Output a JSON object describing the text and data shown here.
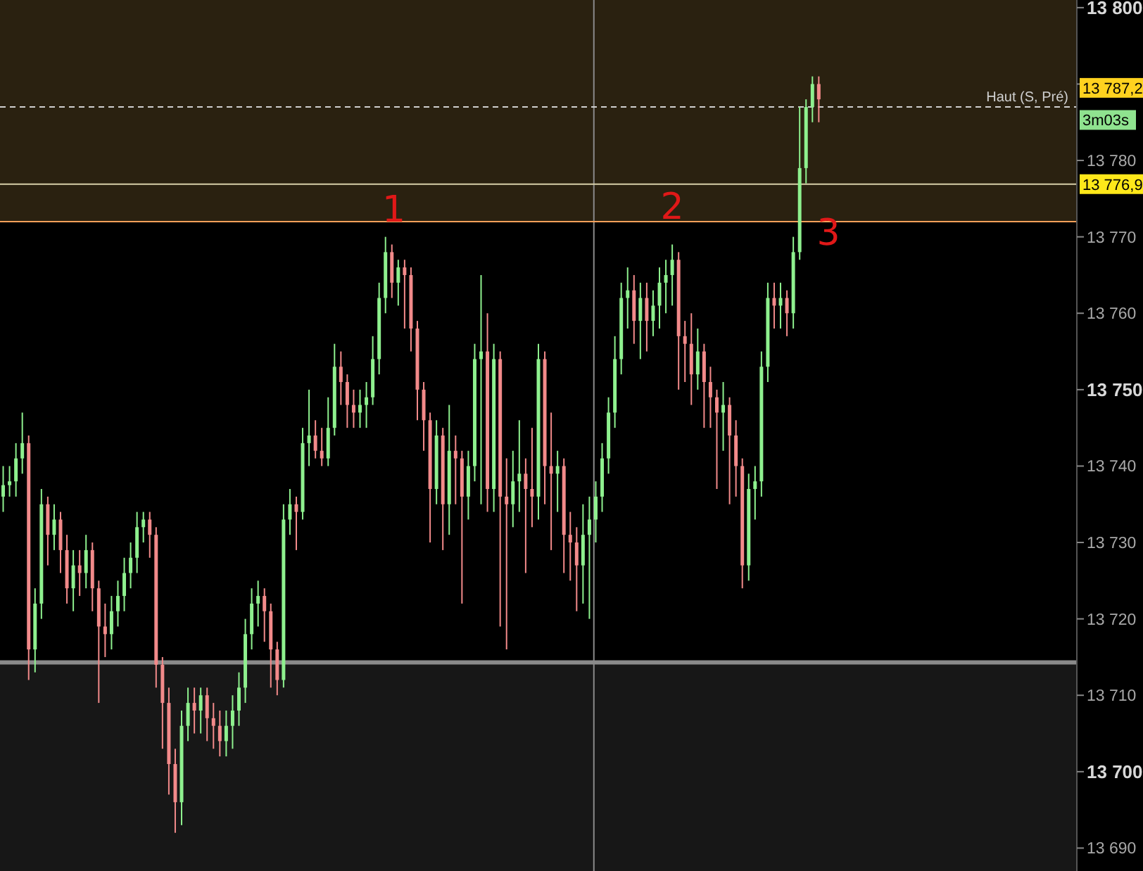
{
  "chart_data": {
    "type": "candlestick",
    "categories": [
      null,
      null,
      null,
      null,
      null,
      null,
      null,
      null,
      null,
      null,
      null,
      null,
      null,
      null,
      null,
      null,
      null,
      null,
      null,
      null,
      null,
      null,
      null,
      null,
      null,
      null,
      null,
      null,
      null,
      null,
      null,
      null,
      null,
      null,
      null,
      null,
      null,
      null,
      null,
      null,
      null,
      null,
      null,
      null,
      null,
      null,
      null,
      null,
      null,
      null,
      null,
      null,
      null,
      null,
      null,
      null,
      null,
      null,
      null,
      null,
      null,
      null,
      null,
      null,
      null,
      null,
      null,
      null,
      null,
      null,
      null,
      null,
      null,
      null,
      null,
      null,
      null,
      null,
      null,
      null,
      null,
      null,
      null,
      null,
      null,
      null,
      null,
      null,
      null,
      null,
      null,
      null,
      null,
      null,
      null,
      null,
      null,
      null,
      null,
      null,
      null,
      null,
      null,
      null,
      null,
      null,
      null,
      null,
      null,
      null,
      null,
      null,
      null,
      null,
      null,
      null,
      null,
      null,
      null,
      null,
      null,
      null,
      null,
      null,
      null,
      null,
      null,
      null,
      null,
      null,
      null,
      null,
      null,
      null,
      null,
      null,
      null,
      null,
      null,
      null,
      null,
      null,
      null,
      null,
      null,
      null,
      null,
      null,
      null,
      null,
      null,
      null,
      null,
      null,
      null,
      null,
      null,
      null,
      null,
      null,
      null,
      null,
      null,
      null,
      null,
      null,
      null,
      null,
      null
    ],
    "ohlc": [
      [
        13736,
        13740,
        13734,
        13737.5
      ],
      [
        13737.5,
        13740,
        13736,
        13738
      ],
      [
        13738,
        13743,
        13736,
        13741
      ],
      [
        13741,
        13747,
        13739,
        13743
      ],
      [
        13743,
        13744,
        13712,
        13716
      ],
      [
        13716,
        13724,
        13713,
        13722
      ],
      [
        13722,
        13737,
        13720,
        13735
      ],
      [
        13735,
        13736,
        13727,
        13731
      ],
      [
        13731,
        13735,
        13729,
        13733
      ],
      [
        13733,
        13734,
        13726,
        13729
      ],
      [
        13729,
        13731,
        13722,
        13724
      ],
      [
        13724,
        13729,
        13721,
        13727
      ],
      [
        13727,
        13729,
        13723,
        13726
      ],
      [
        13726,
        13731,
        13724,
        13729
      ],
      [
        13729,
        13730,
        13721,
        13724
      ],
      [
        13724,
        13725,
        13709,
        13719
      ],
      [
        13719,
        13722,
        13715,
        13718
      ],
      [
        13718,
        13723,
        13716,
        13721
      ],
      [
        13721,
        13725,
        13719,
        13723
      ],
      [
        13723,
        13728,
        13721,
        13726
      ],
      [
        13726,
        13730,
        13724,
        13728
      ],
      [
        13728,
        13734,
        13726,
        13732
      ],
      [
        13732,
        13734,
        13730,
        13733
      ],
      [
        13733,
        13734,
        13728,
        13731
      ],
      [
        13731,
        13732,
        13711,
        13714
      ],
      [
        13714,
        13715,
        13703,
        13709
      ],
      [
        13709,
        13711,
        13697,
        13701
      ],
      [
        13701,
        13703,
        13692,
        13696
      ],
      [
        13696,
        13708,
        13693,
        13706
      ],
      [
        13706,
        13711,
        13704,
        13709
      ],
      [
        13709,
        13711,
        13705,
        13708
      ],
      [
        13708,
        13711,
        13705,
        13710
      ],
      [
        13710,
        13711,
        13704,
        13707
      ],
      [
        13707,
        13709,
        13703,
        13706
      ],
      [
        13706,
        13708,
        13702,
        13704
      ],
      [
        13704,
        13708,
        13702,
        13706
      ],
      [
        13706,
        13710,
        13703,
        13708
      ],
      [
        13708,
        13713,
        13706,
        13711
      ],
      [
        13711,
        13720,
        13709,
        13718
      ],
      [
        13718,
        13724,
        13716,
        13722
      ],
      [
        13722,
        13725,
        13719,
        13723
      ],
      [
        13723,
        13724,
        13717,
        13721
      ],
      [
        13721,
        13722,
        13711,
        13716
      ],
      [
        13716,
        13717,
        13710,
        13712
      ],
      [
        13712,
        13735,
        13711,
        13733
      ],
      [
        13733,
        13737,
        13731,
        13735
      ],
      [
        13735,
        13736,
        13729,
        13734
      ],
      [
        13734,
        13745,
        13733,
        13743
      ],
      [
        13743,
        13750,
        13740,
        13744
      ],
      [
        13744,
        13746,
        13741,
        13742
      ],
      [
        13742,
        13745,
        13740,
        13741
      ],
      [
        13741,
        13749,
        13740,
        13745
      ],
      [
        13745,
        13756,
        13744,
        13753
      ],
      [
        13753,
        13755,
        13748,
        13751
      ],
      [
        13751,
        13752,
        13745,
        13748
      ],
      [
        13748,
        13750,
        13745,
        13747
      ],
      [
        13747,
        13750,
        13745,
        13748
      ],
      [
        13748,
        13751,
        13745,
        13749
      ],
      [
        13749,
        13757,
        13748,
        13754
      ],
      [
        13754,
        13764,
        13752,
        13762
      ],
      [
        13762,
        13770,
        13760,
        13768
      ],
      [
        13768,
        13769,
        13762,
        13764
      ],
      [
        13764,
        13767,
        13761,
        13766
      ],
      [
        13766,
        13767,
        13758,
        13765
      ],
      [
        13765,
        13766,
        13755,
        13758
      ],
      [
        13758,
        13759,
        13746,
        13750
      ],
      [
        13750,
        13751,
        13742,
        13746
      ],
      [
        13746,
        13747,
        13730,
        13737
      ],
      [
        13737,
        13746,
        13735,
        13744
      ],
      [
        13744,
        13745,
        13729,
        13735
      ],
      [
        13735,
        13748,
        13731,
        13742
      ],
      [
        13742,
        13744,
        13735,
        13741
      ],
      [
        13741,
        13742,
        13722,
        13736
      ],
      [
        13736,
        13742,
        13733,
        13740
      ],
      [
        13740,
        13756,
        13738,
        13754
      ],
      [
        13754,
        13765,
        13735,
        13755
      ],
      [
        13755,
        13760,
        13734,
        13737
      ],
      [
        13737,
        13756,
        13734,
        13754
      ],
      [
        13754,
        13755,
        13719,
        13736
      ],
      [
        13736,
        13741,
        13716,
        13735
      ],
      [
        13735,
        13742,
        13732,
        13738
      ],
      [
        13738,
        13746,
        13734,
        13739
      ],
      [
        13739,
        13741,
        13726,
        13737
      ],
      [
        13737,
        13745,
        13732,
        13736
      ],
      [
        13736,
        13756,
        13733,
        13754
      ],
      [
        13754,
        13755,
        13735,
        13740
      ],
      [
        13740,
        13747,
        13729,
        13739
      ],
      [
        13739,
        13742,
        13734,
        13740
      ],
      [
        13740,
        13741,
        13726,
        13731
      ],
      [
        13731,
        13734,
        13725,
        13730
      ],
      [
        13730,
        13732,
        13721,
        13727
      ],
      [
        13727,
        13735,
        13722,
        13731
      ],
      [
        13731,
        13736,
        13720,
        13733
      ],
      [
        13733,
        13738,
        13730,
        13736
      ],
      [
        13736,
        13743,
        13734,
        13741
      ],
      [
        13741,
        13749,
        13739,
        13747
      ],
      [
        13747,
        13757,
        13745,
        13754
      ],
      [
        13754,
        13764,
        13752,
        13762
      ],
      [
        13762,
        13766,
        13758,
        13763
      ],
      [
        13763,
        13765,
        13756,
        13759
      ],
      [
        13759,
        13764,
        13754,
        13762
      ],
      [
        13762,
        13764,
        13755,
        13759
      ],
      [
        13759,
        13763,
        13757,
        13761
      ],
      [
        13761,
        13766,
        13758,
        13764
      ],
      [
        13764,
        13767,
        13760,
        13765
      ],
      [
        13765,
        13769,
        13761,
        13767
      ],
      [
        13767,
        13768,
        13750,
        13757
      ],
      [
        13757,
        13759,
        13751,
        13756
      ],
      [
        13756,
        13760,
        13748,
        13752
      ],
      [
        13752,
        13758,
        13750,
        13755
      ],
      [
        13755,
        13756,
        13745,
        13751
      ],
      [
        13751,
        13753,
        13745,
        13749
      ],
      [
        13749,
        13750,
        13737,
        13747
      ],
      [
        13747,
        13751,
        13742,
        13748
      ],
      [
        13748,
        13749,
        13735,
        13744
      ],
      [
        13744,
        13746,
        13736,
        13740
      ],
      [
        13740,
        13741,
        13724,
        13727
      ],
      [
        13727,
        13739,
        13725,
        13737
      ],
      [
        13737,
        13740,
        13733,
        13738
      ],
      [
        13738,
        13755,
        13736,
        13753
      ],
      [
        13753,
        13764,
        13751,
        13762
      ],
      [
        13762,
        13764,
        13758,
        13761
      ],
      [
        13761,
        13764,
        13758,
        13762
      ],
      [
        13762,
        13763,
        13757,
        13760
      ],
      [
        13760,
        13770,
        13758,
        13768
      ],
      [
        13768,
        13787,
        13767,
        13779
      ],
      [
        13779,
        13788,
        13777,
        13787
      ],
      [
        13787,
        13791,
        13785,
        13790
      ],
      [
        13790,
        13791,
        13785,
        13788
      ],
      null,
      null,
      null,
      null,
      null,
      null,
      null,
      null,
      null,
      null,
      null,
      null,
      null,
      null,
      null,
      null,
      null,
      null,
      null,
      null,
      null,
      null,
      null,
      null,
      null,
      null,
      null,
      null,
      null,
      null,
      null,
      null,
      null,
      null,
      null,
      null,
      null,
      null,
      null,
      null
    ],
    "colors": [
      "#8ef08e",
      "#8ef08e",
      "#8ef08e",
      "#8ef08e",
      "#f28a8a",
      "#8ef08e",
      "#8ef08e",
      "#f28a8a",
      "#8ef08e",
      "#f28a8a",
      "#f28a8a",
      "#8ef08e",
      "#f28a8a",
      "#8ef08e",
      "#f28a8a",
      "#f28a8a",
      "#f28a8a",
      "#8ef08e",
      "#8ef08e",
      "#8ef08e",
      "#8ef08e",
      "#8ef08e",
      "#8ef08e",
      "#f28a8a",
      "#f28a8a",
      "#f28a8a",
      "#f28a8a",
      "#f28a8a",
      "#8ef08e",
      "#8ef08e",
      "#f28a8a",
      "#8ef08e",
      "#f28a8a",
      "#f28a8a",
      "#f28a8a",
      "#8ef08e",
      "#8ef08e",
      "#8ef08e",
      "#8ef08e",
      "#8ef08e",
      "#8ef08e",
      "#f28a8a",
      "#f28a8a",
      "#f28a8a",
      "#8ef08e",
      "#8ef08e",
      "#f28a8a",
      "#8ef08e",
      "#8ef08e",
      "#f28a8a",
      "#f28a8a",
      "#8ef08e",
      "#8ef08e",
      "#f28a8a",
      "#f28a8a",
      "#f28a8a",
      "#8ef08e",
      "#8ef08e",
      "#8ef08e",
      "#8ef08e",
      "#8ef08e",
      "#f28a8a",
      "#8ef08e",
      "#f28a8a",
      "#f28a8a",
      "#f28a8a",
      "#f28a8a",
      "#f28a8a",
      "#8ef08e",
      "#f28a8a",
      "#8ef08e",
      "#f28a8a",
      "#f28a8a",
      "#8ef08e",
      "#8ef08e",
      "#8ef08e",
      "#f28a8a",
      "#8ef08e",
      "#f28a8a",
      "#f28a8a",
      "#8ef08e",
      "#8ef08e",
      "#f28a8a",
      "#f28a8a",
      "#8ef08e",
      "#f28a8a",
      "#f28a8a",
      "#8ef08e",
      "#f28a8a",
      "#f28a8a",
      "#f28a8a",
      "#8ef08e",
      "#8ef08e",
      "#8ef08e",
      "#8ef08e",
      "#8ef08e",
      "#8ef08e",
      "#8ef08e",
      "#8ef08e",
      "#f28a8a",
      "#8ef08e",
      "#f28a8a",
      "#8ef08e",
      "#8ef08e",
      "#8ef08e",
      "#8ef08e",
      "#f28a8a",
      "#f28a8a",
      "#f28a8a",
      "#8ef08e",
      "#f28a8a",
      "#f28a8a",
      "#f28a8a",
      "#8ef08e",
      "#f28a8a",
      "#f28a8a",
      "#f28a8a",
      "#8ef08e",
      "#8ef08e",
      "#8ef08e",
      "#8ef08e",
      "#f28a8a",
      "#8ef08e",
      "#f28a8a",
      "#8ef08e",
      "#8ef08e",
      "#8ef08e",
      "#8ef08e",
      "#f28a8a",
      null,
      null,
      null,
      null,
      null,
      null,
      null,
      null,
      null,
      null,
      null,
      null,
      null,
      null,
      null,
      null,
      null,
      null,
      null,
      null,
      null,
      null,
      null,
      null,
      null,
      null,
      null,
      null,
      null,
      null,
      null,
      null,
      null,
      null,
      null,
      null,
      null,
      null,
      null,
      null
    ],
    "ylim": [
      13687,
      13801
    ],
    "yticks": [
      {
        "value": 13690,
        "label": "13 690"
      },
      {
        "value": 13700,
        "label": "13 700"
      },
      {
        "value": 13710,
        "label": "13 710"
      },
      {
        "value": 13720,
        "label": "13 720"
      },
      {
        "value": 13730,
        "label": "13 730"
      },
      {
        "value": 13740,
        "label": "13 740"
      },
      {
        "value": 13750,
        "label": "13 750"
      },
      {
        "value": 13760,
        "label": "13 760"
      },
      {
        "value": 13770,
        "label": "13 770"
      },
      {
        "value": 13780,
        "label": "13 780"
      },
      {
        "value": 13790,
        "label": null
      },
      {
        "value": 13800,
        "label": "13 800"
      }
    ],
    "tick_labels": "y",
    "bands": [
      {
        "axis": "y",
        "from": 13772,
        "to": 13801,
        "color": "#2a2110"
      },
      {
        "axis": "y",
        "from": 13687,
        "to": 13714.3,
        "color": "#171717"
      }
    ],
    "ref_lines": [
      {
        "axis": "y",
        "value": 13787,
        "label": "Haut (S, Pré)",
        "color": "#d0d0d0",
        "line_style": "dashed"
      },
      {
        "axis": "y",
        "value": 13776.9,
        "label": "13 776,9",
        "color": "#d8d0a8",
        "line_style": "solid"
      },
      {
        "axis": "y",
        "value": 13772,
        "color": "#f5a05a",
        "line_style": "solid"
      },
      {
        "axis": "y",
        "value": 13714.3,
        "color": "#8a8a8a",
        "line_style": "solid"
      }
    ],
    "annotations": [
      "1",
      "2",
      "3",
      "13 787,2",
      "3m03s"
    ]
  }
}
